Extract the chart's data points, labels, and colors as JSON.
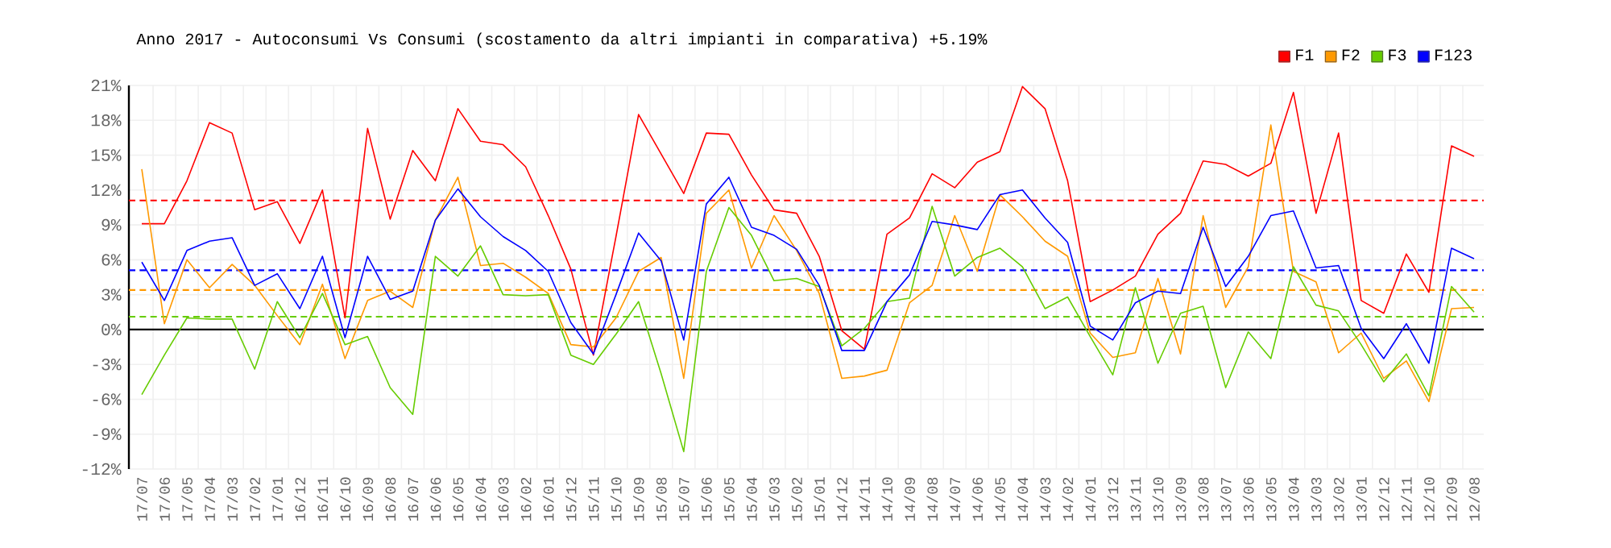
{
  "chart_data": {
    "type": "line",
    "title": "Anno 2017 - Autoconsumi Vs Consumi (scostamento da altri impianti in comparativa) +5.19%",
    "categories": [
      "17/07",
      "17/06",
      "17/05",
      "17/04",
      "17/03",
      "17/02",
      "17/01",
      "16/12",
      "16/11",
      "16/10",
      "16/09",
      "16/08",
      "16/07",
      "16/06",
      "16/05",
      "16/04",
      "16/03",
      "16/02",
      "16/01",
      "15/12",
      "15/11",
      "15/10",
      "15/09",
      "15/08",
      "15/07",
      "15/06",
      "15/05",
      "15/04",
      "15/03",
      "15/02",
      "15/01",
      "14/12",
      "14/11",
      "14/10",
      "14/09",
      "14/08",
      "14/07",
      "14/06",
      "14/05",
      "14/04",
      "14/03",
      "14/02",
      "14/01",
      "13/12",
      "13/11",
      "13/10",
      "13/09",
      "13/08",
      "13/07",
      "13/06",
      "13/05",
      "13/04",
      "13/03",
      "13/02",
      "13/01",
      "12/12",
      "12/11",
      "12/10",
      "12/09",
      "12/08"
    ],
    "series": [
      {
        "name": "F1",
        "color": "#ff0000",
        "values": [
          9.1,
          9.1,
          12.8,
          17.8,
          16.9,
          10.3,
          11.0,
          7.4,
          12.0,
          1.0,
          17.3,
          9.5,
          15.4,
          12.8,
          19.0,
          16.2,
          15.9,
          14.0,
          9.8,
          5.2,
          -2.2,
          8.0,
          18.5,
          15.1,
          11.7,
          16.9,
          16.8,
          13.3,
          10.3,
          10.0,
          6.3,
          -0.1,
          -1.7,
          8.2,
          9.6,
          13.4,
          12.2,
          14.4,
          15.3,
          20.9,
          19.0,
          12.8,
          2.4,
          3.4,
          4.6,
          8.2,
          10.0,
          14.5,
          14.2,
          13.2,
          14.3,
          20.4,
          10.0,
          16.9,
          2.5,
          1.4,
          6.5,
          3.2,
          15.8,
          14.9
        ]
      },
      {
        "name": "F2",
        "color": "#ff9900",
        "values": [
          13.8,
          0.5,
          6.0,
          3.6,
          5.6,
          3.8,
          1.2,
          -1.3,
          3.9,
          -2.5,
          2.5,
          3.3,
          1.9,
          9.4,
          13.1,
          5.5,
          5.7,
          4.5,
          3.1,
          -1.3,
          -1.5,
          1.0,
          5.0,
          6.2,
          -4.2,
          10.0,
          12.0,
          5.3,
          9.8,
          6.8,
          3.1,
          -4.2,
          -4.0,
          -3.5,
          2.3,
          3.8,
          9.8,
          5.0,
          11.6,
          9.7,
          7.6,
          6.3,
          -0.3,
          -2.4,
          -2.0,
          4.4,
          -2.1,
          9.8,
          1.9,
          5.4,
          17.6,
          5.0,
          4.1,
          -2.0,
          -0.3,
          -4.2,
          -2.7,
          -6.2,
          1.8,
          1.9
        ]
      },
      {
        "name": "F3",
        "color": "#66cc00",
        "values": [
          -5.6,
          -2.2,
          1.0,
          0.9,
          0.9,
          -3.4,
          2.4,
          -0.7,
          3.1,
          -1.3,
          -0.6,
          -5.0,
          -7.3,
          6.3,
          4.6,
          7.2,
          3.0,
          2.9,
          3.0,
          -2.2,
          -3.0,
          -0.4,
          2.4,
          -3.8,
          -10.5,
          5.0,
          10.5,
          8.1,
          4.2,
          4.4,
          3.7,
          -1.4,
          0.1,
          2.4,
          2.7,
          10.6,
          4.6,
          6.2,
          7.0,
          5.4,
          1.8,
          2.8,
          -0.6,
          -3.9,
          3.6,
          -2.9,
          1.4,
          2.0,
          -5.0,
          -0.2,
          -2.5,
          5.4,
          2.1,
          1.6,
          -1.3,
          -4.5,
          -2.1,
          -5.7,
          3.7,
          1.5
        ]
      },
      {
        "name": "F123",
        "color": "#0000ff",
        "values": [
          5.8,
          2.5,
          6.8,
          7.6,
          7.9,
          3.8,
          4.8,
          1.8,
          6.3,
          -0.7,
          6.3,
          2.6,
          3.3,
          9.4,
          12.1,
          9.7,
          8.0,
          6.8,
          5.0,
          0.6,
          -2.1,
          3.0,
          8.3,
          5.9,
          -0.9,
          10.8,
          13.1,
          8.8,
          8.1,
          6.9,
          3.8,
          -1.8,
          -1.8,
          2.4,
          4.7,
          9.3,
          9.0,
          8.6,
          11.6,
          12.0,
          9.6,
          7.5,
          0.3,
          -0.9,
          2.3,
          3.3,
          3.1,
          8.8,
          3.7,
          6.3,
          9.8,
          10.2,
          5.3,
          5.5,
          0.1,
          -2.5,
          0.5,
          -2.9,
          7.0,
          6.1
        ]
      }
    ],
    "ylim": [
      -12,
      21
    ],
    "yticks": [
      {
        "value": -12,
        "label": "-12%"
      },
      {
        "value": -9,
        "label": "-9%"
      },
      {
        "value": -6,
        "label": "-6%"
      },
      {
        "value": -3,
        "label": "-3%"
      },
      {
        "value": 0,
        "label": "0%"
      },
      {
        "value": 3,
        "label": "3%"
      },
      {
        "value": 6,
        "label": "6%"
      },
      {
        "value": 9,
        "label": "9%"
      },
      {
        "value": 12,
        "label": "12%"
      },
      {
        "value": 15,
        "label": "15%"
      },
      {
        "value": 18,
        "label": "18%"
      },
      {
        "value": 21,
        "label": "21%"
      }
    ],
    "ref_lines": [
      {
        "axis": "y",
        "value": 0,
        "color": "#000000",
        "line_style": "solid"
      },
      {
        "axis": "y",
        "value": 11.1,
        "color": "#ff0000",
        "line_style": "dashed"
      },
      {
        "axis": "y",
        "value": 3.4,
        "color": "#ff9900",
        "line_style": "dashed"
      },
      {
        "axis": "y",
        "value": 1.1,
        "color": "#66cc00",
        "line_style": "dashed"
      },
      {
        "axis": "y",
        "value": 5.1,
        "color": "#0000ff",
        "line_style": "dashed"
      }
    ],
    "grid": true,
    "legend": "top right",
    "marker": "none",
    "line_style": "solid"
  }
}
